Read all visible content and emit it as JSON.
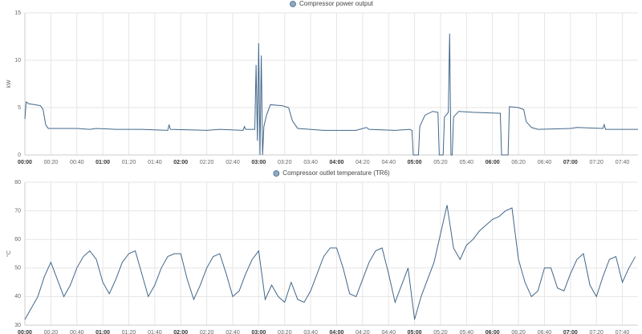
{
  "chart_data": [
    {
      "type": "line",
      "ylabel": "kW",
      "x": [
        0,
        1,
        3,
        8,
        12,
        14,
        16,
        18,
        40,
        50,
        55,
        70,
        90,
        110,
        111,
        112,
        140,
        150,
        168,
        169,
        170,
        177,
        178,
        179,
        180,
        181,
        182,
        183,
        184,
        186,
        189,
        198,
        203,
        206,
        210,
        230,
        255,
        263,
        265,
        285,
        296,
        298,
        299,
        303,
        304,
        308,
        314,
        318,
        319,
        322,
        323,
        326,
        327,
        328,
        329,
        330,
        334,
        345,
        366,
        367,
        372,
        373,
        380,
        384,
        386,
        390,
        395,
        420,
        425,
        445,
        446,
        447,
        472
      ],
      "series": [
        {
          "name": "Compressor power output",
          "color": "#41678a",
          "values": [
            3.8,
            5.6,
            5.4,
            5.3,
            5.2,
            4.8,
            3.2,
            2.8,
            2.8,
            2.7,
            2.8,
            2.7,
            2.7,
            2.6,
            3.2,
            2.7,
            2.6,
            2.7,
            2.6,
            3.0,
            2.7,
            2.7,
            9.5,
            1.5,
            11.8,
            0,
            10.5,
            0,
            3.0,
            4.2,
            5.3,
            5.2,
            5.0,
            3.6,
            2.8,
            2.6,
            2.6,
            2.9,
            2.7,
            2.6,
            2.7,
            2.6,
            0,
            0,
            3.0,
            4.2,
            4.6,
            4.5,
            0,
            0,
            4.0,
            4.5,
            12.8,
            0,
            0,
            4.0,
            4.6,
            4.5,
            4.4,
            0,
            0,
            5.1,
            5.0,
            4.8,
            3.5,
            2.9,
            2.7,
            2.8,
            2.9,
            2.8,
            3.2,
            2.7,
            2.7
          ]
        }
      ],
      "xlim": [
        0,
        472
      ],
      "xticks": [
        {
          "value": 0,
          "label": "00:00"
        },
        {
          "value": 20,
          "label": "00:20"
        },
        {
          "value": 40,
          "label": "00:40"
        },
        {
          "value": 60,
          "label": "01:00"
        },
        {
          "value": 80,
          "label": "01:20"
        },
        {
          "value": 100,
          "label": "01:40"
        },
        {
          "value": 120,
          "label": "02:00"
        },
        {
          "value": 140,
          "label": "02:20"
        },
        {
          "value": 160,
          "label": "02:40"
        },
        {
          "value": 180,
          "label": "03:00"
        },
        {
          "value": 200,
          "label": "03:20"
        },
        {
          "value": 220,
          "label": "03:40"
        },
        {
          "value": 240,
          "label": "04:00"
        },
        {
          "value": 260,
          "label": "04:20"
        },
        {
          "value": 280,
          "label": "04:40"
        },
        {
          "value": 300,
          "label": "05:00"
        },
        {
          "value": 320,
          "label": "05:20"
        },
        {
          "value": 340,
          "label": "05:40"
        },
        {
          "value": 360,
          "label": "06:00"
        },
        {
          "value": 380,
          "label": "06:20"
        },
        {
          "value": 400,
          "label": "06:40"
        },
        {
          "value": 420,
          "label": "07:00"
        },
        {
          "value": 440,
          "label": "07:20"
        },
        {
          "value": 460,
          "label": "07:40"
        }
      ],
      "ylim": [
        0,
        15
      ],
      "yticks": [
        0,
        5,
        10,
        15
      ],
      "grid": true
    },
    {
      "type": "line",
      "ylabel": "°C",
      "x": [
        0,
        5,
        10,
        15,
        20,
        25,
        30,
        35,
        40,
        45,
        50,
        55,
        60,
        65,
        70,
        75,
        80,
        85,
        90,
        95,
        100,
        105,
        110,
        115,
        120,
        125,
        130,
        135,
        140,
        145,
        150,
        155,
        160,
        165,
        170,
        175,
        180,
        185,
        190,
        195,
        200,
        205,
        210,
        215,
        220,
        225,
        230,
        235,
        240,
        245,
        250,
        255,
        260,
        265,
        270,
        275,
        280,
        285,
        290,
        295,
        300,
        305,
        310,
        315,
        320,
        325,
        330,
        335,
        340,
        345,
        350,
        355,
        360,
        365,
        370,
        375,
        380,
        385,
        390,
        395,
        400,
        405,
        410,
        415,
        420,
        425,
        430,
        435,
        440,
        445,
        450,
        455,
        460,
        465,
        470
      ],
      "series": [
        {
          "name": "Compressor outlet temperature (TR6)",
          "color": "#41678a",
          "values": [
            32,
            36,
            40,
            47,
            52,
            46,
            40,
            44,
            50,
            54,
            56,
            53,
            45,
            41,
            46,
            52,
            55,
            56,
            48,
            40,
            44,
            50,
            54,
            55,
            55,
            46,
            39,
            44,
            50,
            54,
            55,
            48,
            40,
            42,
            48,
            53,
            56,
            39,
            44,
            40,
            38,
            45,
            39,
            38,
            42,
            48,
            54,
            57,
            57,
            50,
            41,
            40,
            46,
            52,
            56,
            57,
            48,
            38,
            44,
            50,
            32,
            40,
            46,
            52,
            62,
            72,
            57,
            53,
            58,
            60,
            63,
            65,
            67,
            68,
            70,
            71,
            53,
            45,
            40,
            42,
            50,
            50,
            43,
            42,
            48,
            53,
            55,
            44,
            40,
            47,
            53,
            54,
            45,
            50,
            54
          ]
        }
      ],
      "xlim": [
        0,
        472
      ],
      "xticks": [
        {
          "value": 0,
          "label": "00:00"
        },
        {
          "value": 20,
          "label": "00:20"
        },
        {
          "value": 40,
          "label": "00:40"
        },
        {
          "value": 60,
          "label": "01:00"
        },
        {
          "value": 80,
          "label": "01:20"
        },
        {
          "value": 100,
          "label": "01:40"
        },
        {
          "value": 120,
          "label": "02:00"
        },
        {
          "value": 140,
          "label": "02:20"
        },
        {
          "value": 160,
          "label": "02:40"
        },
        {
          "value": 180,
          "label": "03:00"
        },
        {
          "value": 200,
          "label": "03:20"
        },
        {
          "value": 220,
          "label": "03:40"
        },
        {
          "value": 240,
          "label": "04:00"
        },
        {
          "value": 260,
          "label": "04:20"
        },
        {
          "value": 280,
          "label": "04:40"
        },
        {
          "value": 300,
          "label": "05:00"
        },
        {
          "value": 320,
          "label": "05:20"
        },
        {
          "value": 340,
          "label": "05:40"
        },
        {
          "value": 360,
          "label": "06:00"
        },
        {
          "value": 380,
          "label": "06:20"
        },
        {
          "value": 400,
          "label": "06:40"
        },
        {
          "value": 420,
          "label": "07:00"
        },
        {
          "value": 440,
          "label": "07:20"
        },
        {
          "value": 460,
          "label": "07:40"
        }
      ],
      "ylim": [
        30,
        80
      ],
      "yticks": [
        30,
        40,
        50,
        60,
        70,
        80
      ],
      "grid": true
    }
  ]
}
